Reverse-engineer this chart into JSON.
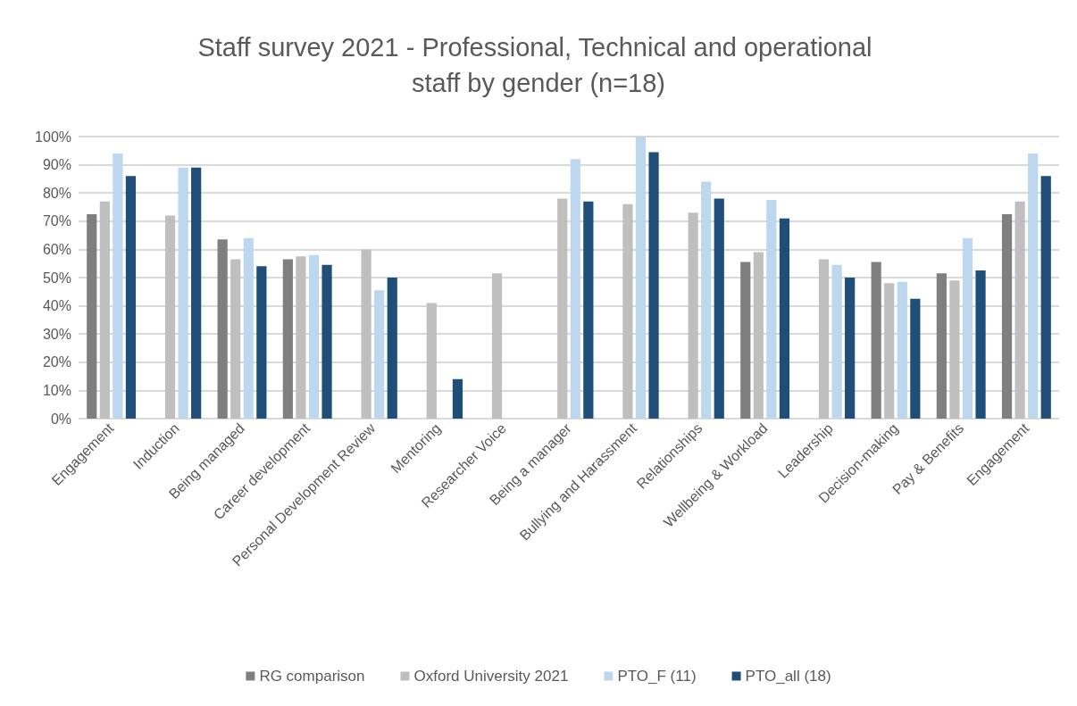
{
  "chart_data": {
    "type": "bar",
    "title": "Staff survey 2021 - Professional, Technical and operational staff by gender (n=18)",
    "categories": [
      "Engagement",
      "Induction",
      "Being managed",
      "Career development",
      "Personal Development Review",
      "Mentoring",
      "Researcher Voice",
      "Being a manager",
      "Bullying and Harassment",
      "Relationships",
      "Wellbeing & Workload",
      "Leadership",
      "Decision-making",
      "Pay & Benefits",
      "Engagement"
    ],
    "series": [
      {
        "name": "RG comparison",
        "color": "#7f7f7f",
        "values": [
          72.5,
          null,
          63.5,
          56.5,
          null,
          null,
          null,
          null,
          null,
          null,
          55.5,
          null,
          55.5,
          51.5,
          72.5
        ]
      },
      {
        "name": "Oxford University 2021",
        "color": "#bfbfbf",
        "values": [
          77,
          72,
          56.5,
          57.5,
          60,
          41,
          51.5,
          78,
          76,
          73,
          59,
          56.5,
          48,
          49,
          77
        ]
      },
      {
        "name": "PTO_F (11)",
        "color": "#bdd7ee",
        "values": [
          94,
          89,
          64,
          58,
          45.5,
          null,
          null,
          92,
          100,
          84,
          77.5,
          54.5,
          48.5,
          64,
          94
        ]
      },
      {
        "name": "PTO_all (18)",
        "color": "#1f4e79",
        "values": [
          86,
          89,
          54,
          54.5,
          50,
          14,
          null,
          77,
          94.5,
          78,
          71,
          50,
          42.5,
          52.5,
          86
        ]
      }
    ],
    "ylim": [
      0,
      100
    ],
    "yticks": [
      {
        "value": 0,
        "label": "0%"
      },
      {
        "value": 10,
        "label": "10%"
      },
      {
        "value": 20,
        "label": "20%"
      },
      {
        "value": 30,
        "label": "30%"
      },
      {
        "value": 40,
        "label": "40%"
      },
      {
        "value": 50,
        "label": "50%"
      },
      {
        "value": 60,
        "label": "60%"
      },
      {
        "value": 70,
        "label": "70%"
      },
      {
        "value": 80,
        "label": "80%"
      },
      {
        "value": 90,
        "label": "90%"
      },
      {
        "value": 100,
        "label": "100%"
      }
    ],
    "grid": "y",
    "legend": "bottom"
  }
}
